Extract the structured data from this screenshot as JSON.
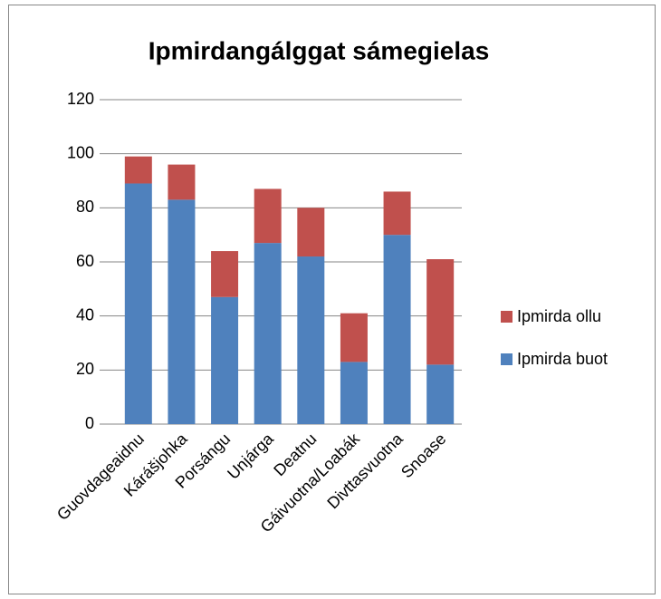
{
  "chart_data": {
    "type": "bar",
    "stacked": true,
    "title": "Ipmirdangálggat sámegielas",
    "categories": [
      "Guovdageaidnu",
      "Kárášjohka",
      "Porsángu",
      "Unjárga",
      "Deatnu",
      "Gáivuotna/Loabák",
      "Divttasvuotna",
      "Snoase"
    ],
    "series": [
      {
        "name": "Ipmirda buot",
        "color": "#4f81bd",
        "values": [
          89,
          83,
          47,
          67,
          62,
          23,
          70,
          22
        ]
      },
      {
        "name": "Ipmirda ollu",
        "color": "#c0504d",
        "values": [
          10,
          13,
          17,
          20,
          18,
          18,
          16,
          39
        ]
      }
    ],
    "ylim": [
      0,
      120
    ],
    "yticks": [
      0,
      20,
      40,
      60,
      80,
      100,
      120
    ],
    "grid": true,
    "legend": "right"
  }
}
